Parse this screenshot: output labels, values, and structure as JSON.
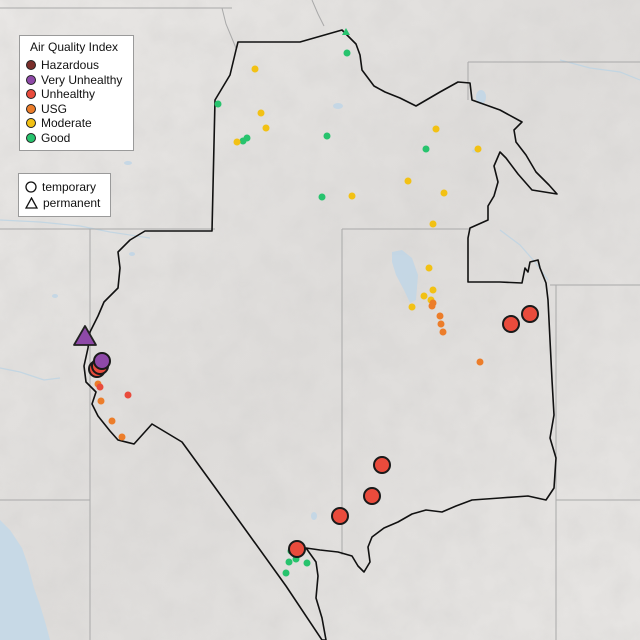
{
  "legend": {
    "title": "Air Quality Index",
    "categories": [
      {
        "label": "Hazardous",
        "color": "#7a2e2a"
      },
      {
        "label": "Very Unhealthy",
        "color": "#8e49a8"
      },
      {
        "label": "Unhealthy",
        "color": "#e94b3c"
      },
      {
        "label": "USG",
        "color": "#ec7d2a"
      },
      {
        "label": "Moderate",
        "color": "#f2c114"
      },
      {
        "label": "Good",
        "color": "#27c36d"
      }
    ],
    "site_types": [
      {
        "label": "temporary",
        "shape": "circle"
      },
      {
        "label": "permanent",
        "shape": "triangle"
      }
    ]
  },
  "monitors": [
    {
      "category": "Good",
      "type": "permanent",
      "size": "small"
    },
    {
      "category": "Good",
      "type": "temporary",
      "size": "small"
    },
    {
      "category": "Good",
      "type": "temporary",
      "size": "small"
    },
    {
      "category": "Good",
      "type": "temporary",
      "size": "small"
    },
    {
      "category": "Good",
      "type": "temporary",
      "size": "small"
    },
    {
      "category": "Good",
      "type": "temporary",
      "size": "small"
    },
    {
      "category": "Good",
      "type": "temporary",
      "size": "small"
    },
    {
      "category": "Good",
      "type": "temporary",
      "size": "small"
    },
    {
      "category": "Good",
      "type": "temporary",
      "size": "small"
    },
    {
      "category": "Good",
      "type": "temporary",
      "size": "small"
    },
    {
      "category": "Good",
      "type": "temporary",
      "size": "small"
    },
    {
      "category": "Good",
      "type": "temporary",
      "size": "small"
    },
    {
      "category": "Good",
      "type": "temporary",
      "size": "small"
    },
    {
      "category": "Good",
      "type": "temporary",
      "size": "small"
    },
    {
      "category": "Moderate",
      "type": "temporary",
      "size": "small"
    },
    {
      "category": "Moderate",
      "type": "temporary",
      "size": "small"
    },
    {
      "category": "Moderate",
      "type": "temporary",
      "size": "small"
    },
    {
      "category": "Moderate",
      "type": "temporary",
      "size": "small"
    },
    {
      "category": "Moderate",
      "type": "temporary",
      "size": "small"
    },
    {
      "category": "Moderate",
      "type": "temporary",
      "size": "small"
    },
    {
      "category": "Moderate",
      "type": "temporary",
      "size": "small"
    },
    {
      "category": "Moderate",
      "type": "temporary",
      "size": "small"
    },
    {
      "category": "Moderate",
      "type": "temporary",
      "size": "small"
    },
    {
      "category": "Moderate",
      "type": "temporary",
      "size": "small"
    },
    {
      "category": "Moderate",
      "type": "temporary",
      "size": "small"
    },
    {
      "category": "Moderate",
      "type": "temporary",
      "size": "small"
    },
    {
      "category": "Moderate",
      "type": "temporary",
      "size": "small"
    },
    {
      "category": "Moderate",
      "type": "temporary",
      "size": "small"
    },
    {
      "category": "Moderate",
      "type": "temporary",
      "size": "small"
    },
    {
      "category": "USG",
      "type": "temporary",
      "size": "small"
    },
    {
      "category": "USG",
      "type": "temporary",
      "size": "small"
    },
    {
      "category": "USG",
      "type": "temporary",
      "size": "small"
    },
    {
      "category": "USG",
      "type": "temporary",
      "size": "small"
    },
    {
      "category": "USG",
      "type": "temporary",
      "size": "small"
    },
    {
      "category": "USG",
      "type": "temporary",
      "size": "small"
    },
    {
      "category": "USG",
      "type": "temporary",
      "size": "small"
    },
    {
      "category": "USG",
      "type": "temporary",
      "size": "small"
    },
    {
      "category": "USG",
      "type": "temporary",
      "size": "small"
    },
    {
      "category": "USG",
      "type": "temporary",
      "size": "small"
    },
    {
      "category": "Unhealthy",
      "type": "temporary",
      "size": "small"
    },
    {
      "category": "Unhealthy",
      "type": "temporary",
      "size": "small"
    },
    {
      "category": "Unhealthy",
      "type": "temporary",
      "size": "large"
    },
    {
      "category": "Unhealthy",
      "type": "temporary",
      "size": "large"
    },
    {
      "category": "Unhealthy",
      "type": "temporary",
      "size": "large"
    },
    {
      "category": "Unhealthy",
      "type": "temporary",
      "size": "large"
    },
    {
      "category": "Unhealthy",
      "type": "temporary",
      "size": "large"
    },
    {
      "category": "Unhealthy",
      "type": "temporary",
      "size": "large"
    },
    {
      "category": "Unhealthy",
      "type": "temporary",
      "size": "large"
    },
    {
      "category": "Unhealthy",
      "type": "temporary",
      "size": "large"
    },
    {
      "category": "Very Unhealthy",
      "type": "temporary",
      "size": "large"
    },
    {
      "category": "Very Unhealthy",
      "type": "permanent",
      "size": "large"
    }
  ]
}
